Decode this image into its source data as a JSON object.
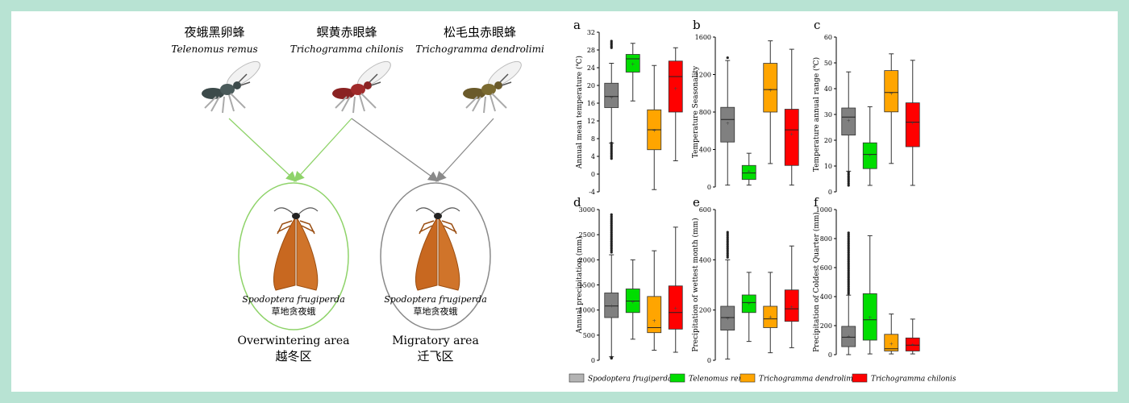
{
  "left": {
    "parasitoids": [
      {
        "cn": "夜蛾黑卵蜂",
        "latin": "Telenomus remus",
        "color": "#3c4a4a"
      },
      {
        "cn": "螟黄赤眼蜂",
        "latin": "Trichogramma chilonis",
        "color": "#8a2222"
      },
      {
        "cn": "松毛虫赤眼蜂",
        "latin": "Trichogramma dendrolimi",
        "color": "#6a5a2a"
      }
    ],
    "host_latin": "Spodoptera frugiperda",
    "host_cn": "草地贪夜蛾",
    "areas": [
      {
        "en": "Overwintering area",
        "cn": "越冬区",
        "color": "#8fd36a"
      },
      {
        "en": "Migratory area",
        "cn": "迁飞区",
        "color": "#8a8a8a"
      }
    ]
  },
  "legend": [
    {
      "label": "Spodoptera frugiperda",
      "color": "#b3b3b3"
    },
    {
      "label": "Telenomus remus",
      "color": "#00dd00"
    },
    {
      "label": "Trichogramma dendrolimi",
      "color": "#ffa500"
    },
    {
      "label": "Trichogramma chilonis",
      "color": "#ff0000"
    }
  ],
  "chart_data": [
    {
      "panel": "a",
      "type": "box",
      "ylabel": "Annual mean temperature (℃)",
      "ylim": [
        -4,
        32
      ],
      "ticks": [
        "-4",
        "0",
        "4",
        "8",
        "12",
        "16",
        "20",
        "24",
        "28",
        "32"
      ],
      "series": [
        {
          "color": "#808080",
          "min": 7,
          "q1": 15,
          "median": 17.5,
          "q3": 20.5,
          "max": 25,
          "mean": 17.5,
          "outliers_low": [
            3.5,
            7
          ],
          "outliers_high": [
            28.5,
            30
          ]
        },
        {
          "color": "#00dd00",
          "min": 16.5,
          "q1": 23,
          "median": 26,
          "q3": 27,
          "max": 29.5,
          "mean": 25
        },
        {
          "color": "#ffa500",
          "min": -3.5,
          "q1": 5.5,
          "median": 10,
          "q3": 14.5,
          "max": 24.5,
          "mean": 10
        },
        {
          "color": "#ff0000",
          "min": 3,
          "q1": 14,
          "median": 22,
          "q3": 25.5,
          "max": 28.5,
          "mean": 19.5
        }
      ]
    },
    {
      "panel": "b",
      "type": "box",
      "ylabel": "Temperature Seasonality",
      "ylim": [
        0,
        1600
      ],
      "ticks": [
        "0",
        "400",
        "800",
        "1200",
        "1600"
      ],
      "series": [
        {
          "color": "#808080",
          "min": 20,
          "q1": 480,
          "median": 720,
          "q3": 850,
          "max": 1350,
          "mean": 690,
          "outliers_low": [],
          "outliers_high": [
            1380
          ]
        },
        {
          "color": "#00dd00",
          "min": 20,
          "q1": 80,
          "median": 150,
          "q3": 230,
          "max": 360,
          "mean": 170
        },
        {
          "color": "#ffa500",
          "min": 250,
          "q1": 800,
          "median": 1040,
          "q3": 1320,
          "max": 1560,
          "mean": 1040
        },
        {
          "color": "#ff0000",
          "min": 20,
          "q1": 230,
          "median": 610,
          "q3": 830,
          "max": 1470,
          "mean": 570
        }
      ]
    },
    {
      "panel": "c",
      "type": "box",
      "ylabel": "Temperature annual range (℃)",
      "ylim": [
        0,
        60
      ],
      "ticks": [
        "0",
        "10",
        "20",
        "30",
        "40",
        "50",
        "60"
      ],
      "series": [
        {
          "color": "#808080",
          "min": 8,
          "q1": 22,
          "median": 29,
          "q3": 32.5,
          "max": 46.5,
          "mean": 28,
          "outliers_low": [
            2.5,
            7.5
          ],
          "outliers_high": []
        },
        {
          "color": "#00dd00",
          "min": 2.5,
          "q1": 9,
          "median": 14.5,
          "q3": 19,
          "max": 33,
          "mean": 14.5
        },
        {
          "color": "#ffa500",
          "min": 11,
          "q1": 31,
          "median": 38.5,
          "q3": 47,
          "max": 53.5,
          "mean": 38.5
        },
        {
          "color": "#ff0000",
          "min": 2.5,
          "q1": 17.5,
          "median": 27,
          "q3": 34.5,
          "max": 51,
          "mean": 27
        }
      ]
    },
    {
      "panel": "d",
      "type": "box",
      "ylabel": "Annual precipitation (mm)",
      "ylim": [
        0,
        3000
      ],
      "ticks": [
        "0",
        "500",
        "1000",
        "1500",
        "2000",
        "2500",
        "3000"
      ],
      "series": [
        {
          "color": "#808080",
          "min": 70,
          "q1": 850,
          "median": 1080,
          "q3": 1340,
          "max": 2100,
          "mean": 1100,
          "outliers_low": [
            40,
            60
          ],
          "outliers_high": [
            2150,
            2900
          ]
        },
        {
          "color": "#00dd00",
          "min": 420,
          "q1": 950,
          "median": 1180,
          "q3": 1420,
          "max": 2000,
          "mean": 1180
        },
        {
          "color": "#ffa500",
          "min": 200,
          "q1": 550,
          "median": 650,
          "q3": 1270,
          "max": 2180,
          "mean": 800
        },
        {
          "color": "#ff0000",
          "min": 160,
          "q1": 620,
          "median": 950,
          "q3": 1480,
          "max": 2650,
          "mean": 1050
        }
      ]
    },
    {
      "panel": "e",
      "type": "box",
      "ylabel": "Precipitation of wettest month (mm)",
      "ylim": [
        0,
        600
      ],
      "ticks": [
        "0",
        "200",
        "400",
        "600"
      ],
      "series": [
        {
          "color": "#808080",
          "min": 5,
          "q1": 120,
          "median": 170,
          "q3": 215,
          "max": 400,
          "mean": 170,
          "outliers_low": [],
          "outliers_high": [
            410,
            510
          ]
        },
        {
          "color": "#00dd00",
          "min": 75,
          "q1": 190,
          "median": 230,
          "q3": 260,
          "max": 350,
          "mean": 230
        },
        {
          "color": "#ffa500",
          "min": 30,
          "q1": 130,
          "median": 165,
          "q3": 215,
          "max": 350,
          "mean": 175
        },
        {
          "color": "#ff0000",
          "min": 50,
          "q1": 155,
          "median": 205,
          "q3": 280,
          "max": 455,
          "mean": 215
        }
      ]
    },
    {
      "panel": "f",
      "type": "box",
      "ylabel": "Precipitation of Coldest Quarter (mm)",
      "ylim": [
        0,
        1000
      ],
      "ticks": [
        "0",
        "200",
        "400",
        "600",
        "800",
        "1000"
      ],
      "series": [
        {
          "color": "#808080",
          "min": 0,
          "q1": 55,
          "median": 120,
          "q3": 195,
          "max": 410,
          "mean": 130,
          "outliers_low": [],
          "outliers_high": [
            420,
            840
          ]
        },
        {
          "color": "#00dd00",
          "min": 5,
          "q1": 100,
          "median": 240,
          "q3": 420,
          "max": 820,
          "mean": 260
        },
        {
          "color": "#ffa500",
          "min": 5,
          "q1": 25,
          "median": 40,
          "q3": 140,
          "max": 280,
          "mean": 80
        },
        {
          "color": "#ff0000",
          "min": 5,
          "q1": 25,
          "median": 65,
          "q3": 115,
          "max": 245,
          "mean": 75
        }
      ]
    }
  ]
}
